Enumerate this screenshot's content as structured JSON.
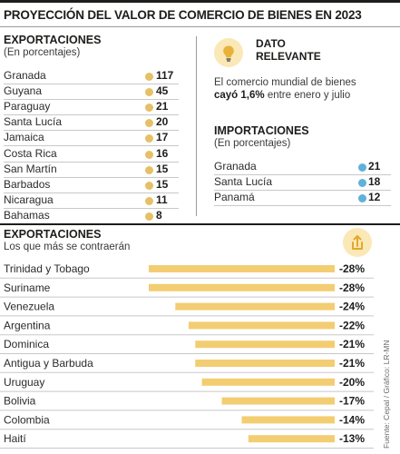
{
  "title": "PROYECCIÓN DEL VALOR DE COMERCIO DE BIENES EN 2023",
  "exportaciones_top": {
    "heading": "EXPORTACIONES",
    "subheading": "(En porcentajes)",
    "items": [
      {
        "name": "Granada",
        "value": "117"
      },
      {
        "name": "Guyana",
        "value": "45"
      },
      {
        "name": "Paraguay",
        "value": "21"
      },
      {
        "name": "Santa Lucía",
        "value": "20"
      },
      {
        "name": "Jamaica",
        "value": "17"
      },
      {
        "name": "Costa Rica",
        "value": "16"
      },
      {
        "name": "San Martín",
        "value": "15"
      },
      {
        "name": "Barbados",
        "value": "15"
      },
      {
        "name": "Nicaragua",
        "value": "11"
      },
      {
        "name": "Bahamas",
        "value": "8"
      }
    ]
  },
  "dato": {
    "title_1": "DATO",
    "title_2": "RELEVANTE",
    "text_1": "El comercio mundial de bienes",
    "text_bold": "cayó 1,6%",
    "text_2": " entre enero y julio"
  },
  "importaciones": {
    "heading": "IMPORTACIONES",
    "subheading": "(En porcentajes)",
    "items": [
      {
        "name": "Granada",
        "value": "21"
      },
      {
        "name": "Santa Lucía",
        "value": "18"
      },
      {
        "name": "Panamá",
        "value": "12"
      }
    ]
  },
  "exportaciones_bottom": {
    "heading": "EXPORTACIONES",
    "subheading": "Los que más se contraerán"
  },
  "source": "Fuente: Cepal / Gráfico: LR-MN",
  "colors": {
    "gold": "#e6c066",
    "blue": "#5fb1d9",
    "bar": "#f3cd72",
    "icon_bg": "#fbe8b7",
    "icon_stroke": "#e0a92c"
  },
  "icons": {
    "dato": "lightbulb-icon",
    "share": "share-icon"
  },
  "chart_data": {
    "type": "bar",
    "orientation": "horizontal",
    "categories": [
      "Trinidad y Tobago",
      "Suriname",
      "Venezuela",
      "Argentina",
      "Dominica",
      "Antigua y Barbuda",
      "Uruguay",
      "Bolivia",
      "Colombia",
      "Haití"
    ],
    "values": [
      -28,
      -28,
      -24,
      -22,
      -21,
      -21,
      -20,
      -17,
      -14,
      -13
    ],
    "labels": [
      "-28%",
      "-28%",
      "-24%",
      "-22%",
      "-21%",
      "-21%",
      "-20%",
      "-17%",
      "-14%",
      "-13%"
    ],
    "xlim": [
      -28,
      0
    ]
  }
}
